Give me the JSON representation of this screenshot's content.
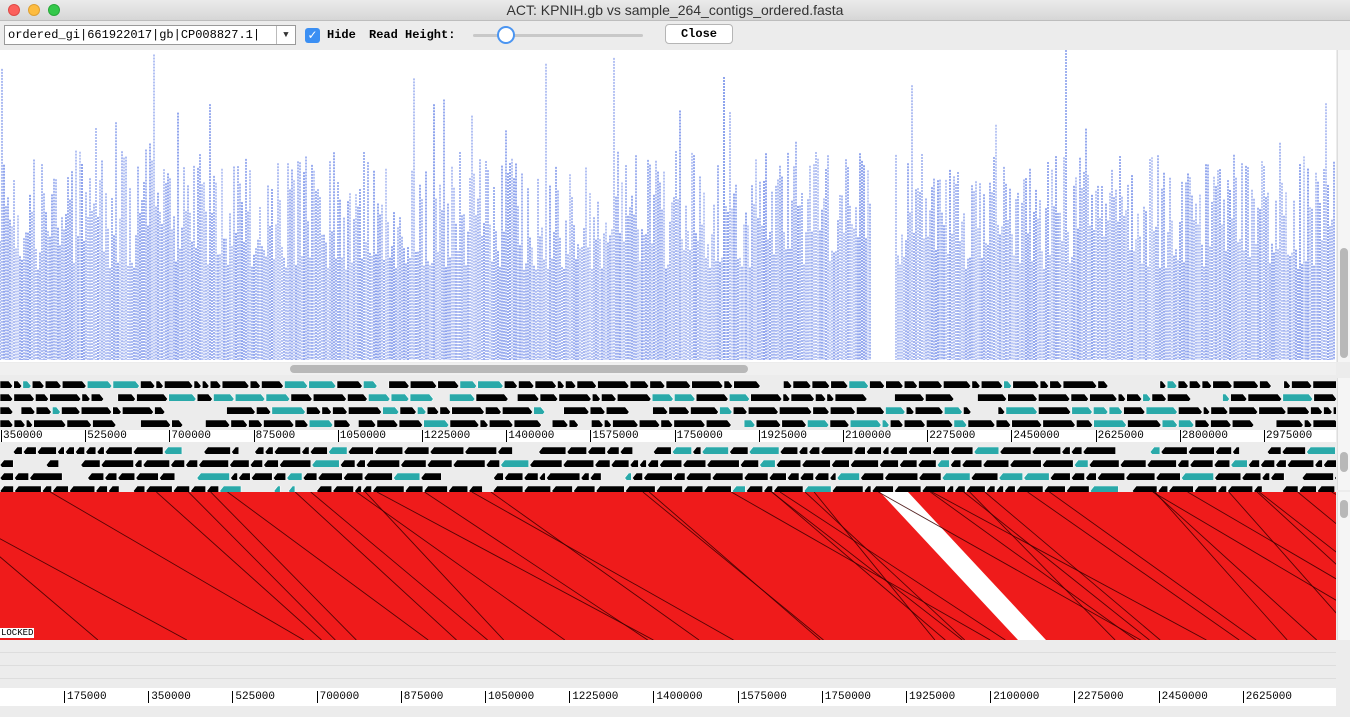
{
  "window": {
    "title": "ACT: KPNIH.gb vs sample_264_contigs_ordered.fasta"
  },
  "toolbar": {
    "sequence_value": "ordered_gi|661922017|gb|CP008827.1|",
    "hide_checked": true,
    "hide_label": "Hide",
    "read_height_label": "Read Height:",
    "close_label": "Close"
  },
  "ruler_top": {
    "ticks": [
      "350000",
      "525000",
      "700000",
      "875000",
      "1050000",
      "1225000",
      "1400000",
      "1575000",
      "1750000",
      "1925000",
      "2100000",
      "2275000",
      "2450000",
      "2625000",
      "2800000",
      "2975000"
    ]
  },
  "right_marker": "61",
  "locked_label": "LOCKED",
  "ruler_bottom": {
    "ticks": [
      "175000",
      "350000",
      "525000",
      "700000",
      "875000",
      "1050000",
      "1225000",
      "1400000",
      "1575000",
      "1750000",
      "1925000",
      "2100000",
      "2275000",
      "2450000",
      "2625000"
    ]
  },
  "colors": {
    "reads": "#3b5fe0",
    "match": "#ef1b1b",
    "feature": "#000000",
    "feature_alt": "#2aa9a9"
  }
}
